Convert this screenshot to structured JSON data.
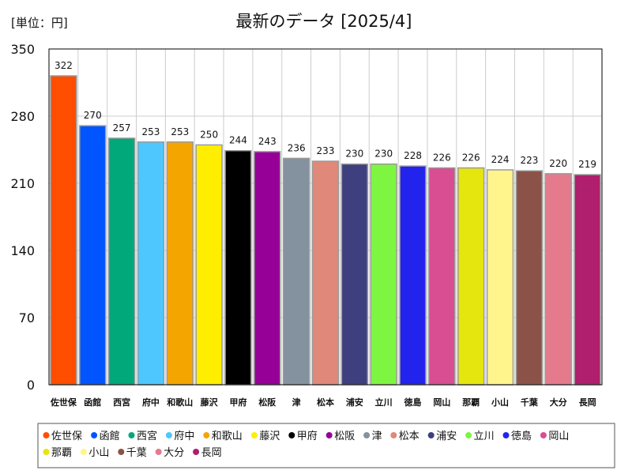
{
  "unit_label": "[単位：円]",
  "title": "最新のデータ [2025/4]",
  "chart_data": {
    "type": "bar",
    "categories": [
      "佐世保",
      "函館",
      "西宮",
      "府中",
      "和歌山",
      "藤沢",
      "甲府",
      "松阪",
      "津",
      "松本",
      "浦安",
      "立川",
      "徳島",
      "岡山",
      "那覇",
      "小山",
      "千葉",
      "大分",
      "長岡"
    ],
    "values": [
      322,
      270,
      257,
      253,
      253,
      250,
      244,
      243,
      236,
      233,
      230,
      230,
      228,
      226,
      226,
      224,
      223,
      220,
      219
    ],
    "colors": [
      "#ff4e00",
      "#0055ff",
      "#00a87a",
      "#4ec7ff",
      "#f5a500",
      "#ffee00",
      "#000000",
      "#960096",
      "#8492a0",
      "#e0897a",
      "#3d3f7e",
      "#7ef540",
      "#2323ee",
      "#d94d92",
      "#e6e60f",
      "#fff58c",
      "#8b5348",
      "#e47a8c",
      "#b01e6e"
    ],
    "yticks": [
      0,
      70,
      140,
      210,
      280,
      350
    ],
    "ylim": [
      0,
      350
    ],
    "grid": true,
    "legend_position": "bottom"
  }
}
